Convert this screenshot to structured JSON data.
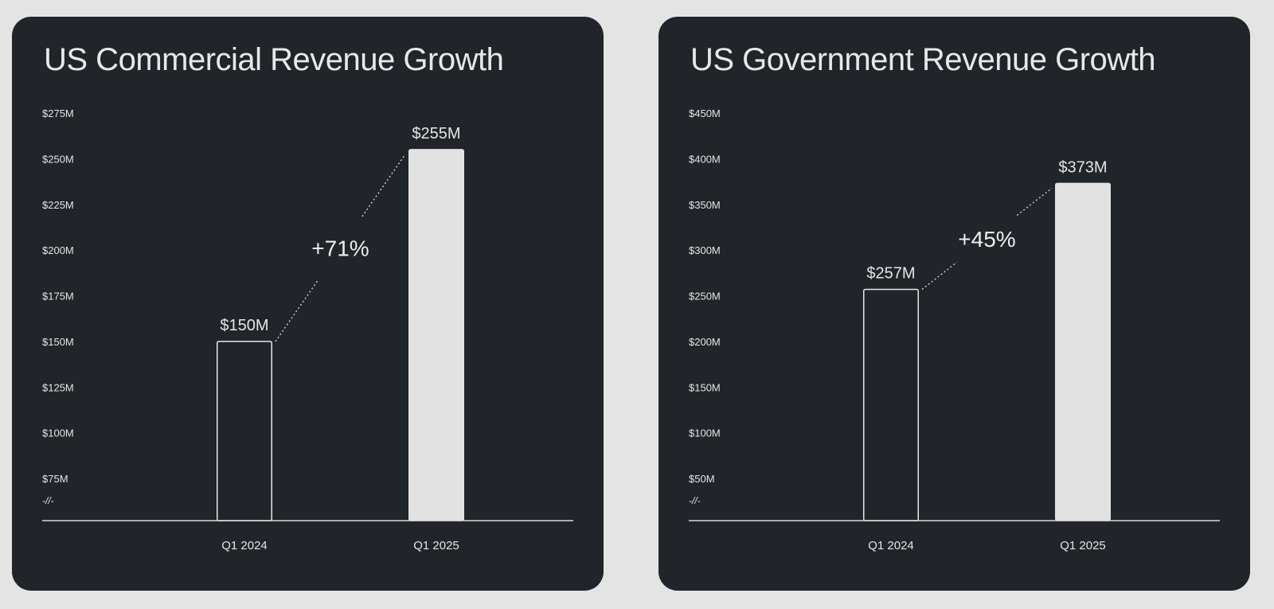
{
  "chart_data": [
    {
      "type": "bar",
      "title": "US Commercial Revenue Growth",
      "categories": [
        "Q1 2024",
        "Q1 2025"
      ],
      "values": [
        150,
        255
      ],
      "value_labels": [
        "$150M",
        "$255M"
      ],
      "unit": "$M",
      "yticks": [
        "$75M",
        "$100M",
        "$125M",
        "$150M",
        "$175M",
        "$200M",
        "$225M",
        "$250M",
        "$275M"
      ],
      "ytick_values": [
        75,
        100,
        125,
        150,
        175,
        200,
        225,
        250,
        275
      ],
      "ylim": [
        75,
        275
      ],
      "axis_break_marker": "-//-",
      "growth_label": "+71%",
      "bar_styles": [
        "outline",
        "filled"
      ],
      "xlabel": "",
      "ylabel": "",
      "grid": false
    },
    {
      "type": "bar",
      "title": "US Government Revenue Growth",
      "categories": [
        "Q1 2024",
        "Q1 2025"
      ],
      "values": [
        257,
        373
      ],
      "value_labels": [
        "$257M",
        "$373M"
      ],
      "unit": "$M",
      "yticks": [
        "$50M",
        "$100M",
        "$150M",
        "$200M",
        "$250M",
        "$300M",
        "$350M",
        "$400M",
        "$450M"
      ],
      "ytick_values": [
        50,
        100,
        150,
        200,
        250,
        300,
        350,
        400,
        450
      ],
      "ylim": [
        50,
        450
      ],
      "axis_break_marker": "-//-",
      "growth_label": "+45%",
      "bar_styles": [
        "outline",
        "filled"
      ],
      "xlabel": "",
      "ylabel": "",
      "grid": false
    }
  ],
  "colors": {
    "page_background": "#e4e4e4",
    "panel_background": "#212428",
    "bar_fill": "#e2e2e2",
    "bar_outline": "#e8e8e8",
    "text": "#e6e6e6",
    "axis_line": "#d8d8d8",
    "connector": "#d0d0d0"
  }
}
